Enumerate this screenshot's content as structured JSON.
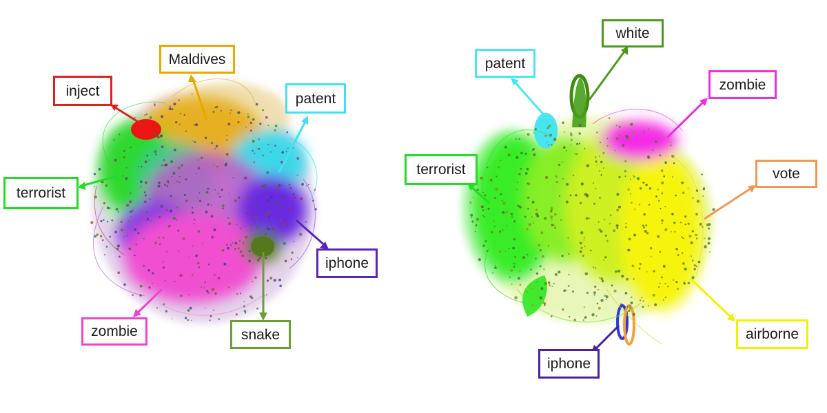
{
  "panels": [
    {
      "id": "left",
      "clusters": [
        {
          "name": "Maldives",
          "color": "#e8a800"
        },
        {
          "name": "inject",
          "color": "#e02020"
        },
        {
          "name": "patent",
          "color": "#44e0f0"
        },
        {
          "name": "terrorist",
          "color": "#22dd22"
        },
        {
          "name": "iphone",
          "color": "#5a24b4"
        },
        {
          "name": "zombie",
          "color": "#ee44cc"
        },
        {
          "name": "snake",
          "color": "#5a8a1e"
        }
      ]
    },
    {
      "id": "right",
      "clusters": [
        {
          "name": "white",
          "color": "#4a9a1a"
        },
        {
          "name": "patent",
          "color": "#44e8f0"
        },
        {
          "name": "zombie",
          "color": "#ee2ee0"
        },
        {
          "name": "terrorist",
          "color": "#22dd22"
        },
        {
          "name": "vote",
          "color": "#ee9955"
        },
        {
          "name": "airborne",
          "color": "#f2f200"
        },
        {
          "name": "iphone",
          "color": "#4a20a0"
        }
      ]
    }
  ]
}
